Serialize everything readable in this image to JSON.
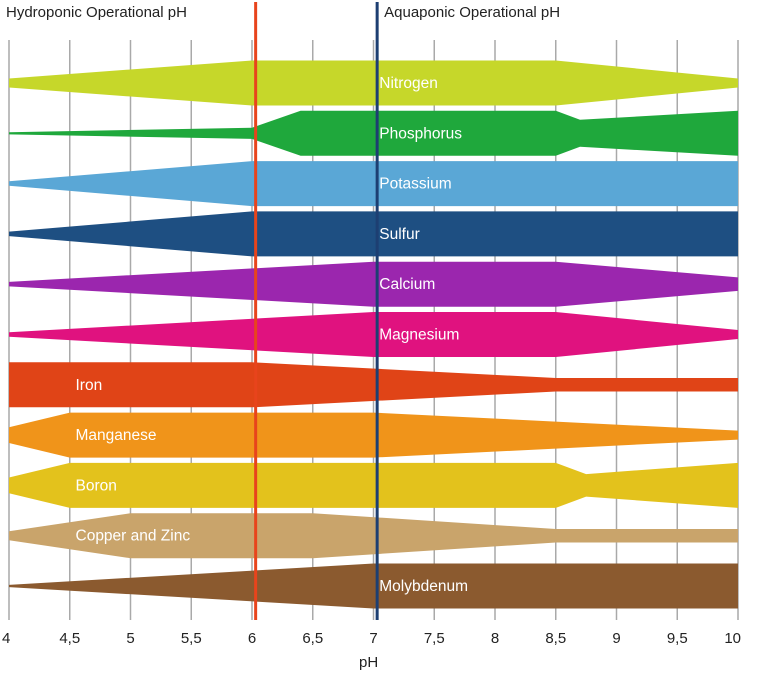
{
  "chart_data": {
    "type": "area",
    "xlabel": "pH",
    "xlim": [
      4,
      10
    ],
    "x_ticks": [
      4,
      4.5,
      5,
      5.5,
      6,
      6.5,
      7,
      7.5,
      8,
      8.5,
      9,
      9.5,
      10
    ],
    "x_tick_labels": [
      "4",
      "4,5",
      "5",
      "5,5",
      "6",
      "6,5",
      "7",
      "7,5",
      "8",
      "8,5",
      "9",
      "9,5",
      "10"
    ],
    "grid": true,
    "reference_lines": [
      {
        "label": "Hydroponic Operational pH",
        "x": 6.03,
        "color": "#e8441c"
      },
      {
        "label": "Aquaponic Operational pH",
        "x": 7.03,
        "color": "#1d3f72"
      }
    ],
    "series": [
      {
        "name": "Nitrogen",
        "color": "#c6d72a",
        "label_x": 7.5,
        "x": [
          4,
          6,
          7,
          8.5,
          10
        ],
        "values": [
          0.2,
          1,
          1,
          1,
          0.2
        ]
      },
      {
        "name": "Phosphorus",
        "color": "#1fa83c",
        "label_x": 7.5,
        "x": [
          4,
          6,
          6.4,
          8.5,
          8.7,
          10
        ],
        "values": [
          0.05,
          0.25,
          1,
          1,
          0.6,
          1
        ]
      },
      {
        "name": "Potassium",
        "color": "#5aa7d6",
        "label_x": 7.5,
        "x": [
          4,
          6,
          10
        ],
        "values": [
          0.1,
          1,
          1
        ]
      },
      {
        "name": "Sulfur",
        "color": "#1e4f82",
        "label_x": 7.5,
        "x": [
          4,
          6,
          10
        ],
        "values": [
          0.1,
          1,
          1
        ]
      },
      {
        "name": "Calcium",
        "color": "#9b26ae",
        "label_x": 7.5,
        "x": [
          4,
          7,
          8.5,
          10
        ],
        "values": [
          0.1,
          1,
          1,
          0.3
        ]
      },
      {
        "name": "Magnesium",
        "color": "#e0127f",
        "label_x": 7.5,
        "x": [
          4,
          7,
          8.5,
          10
        ],
        "values": [
          0.1,
          1,
          1,
          0.2
        ]
      },
      {
        "name": "Iron",
        "color": "#e04417",
        "label_x": 5,
        "x": [
          4,
          6,
          8.5,
          10
        ],
        "values": [
          1,
          1,
          0.3,
          0.3
        ]
      },
      {
        "name": "Manganese",
        "color": "#f0941a",
        "label_x": 5,
        "x": [
          4,
          4.5,
          7,
          10
        ],
        "values": [
          0.35,
          1,
          1,
          0.2
        ]
      },
      {
        "name": "Boron",
        "color": "#e3c21c",
        "label_x": 5,
        "x": [
          4,
          4.5,
          8.5,
          8.75,
          10
        ],
        "values": [
          0.35,
          1,
          1,
          0.5,
          1
        ]
      },
      {
        "name": "Copper and Zinc",
        "color": "#c9a46b",
        "label_x": 5,
        "x": [
          4,
          5,
          6.5,
          8.5,
          10
        ],
        "values": [
          0.2,
          1,
          1,
          0.3,
          0.3
        ]
      },
      {
        "name": "Molybdenum",
        "color": "#8b5a2f",
        "label_x": 7.5,
        "x": [
          4,
          7,
          10
        ],
        "values": [
          0.05,
          1,
          1
        ]
      }
    ]
  }
}
